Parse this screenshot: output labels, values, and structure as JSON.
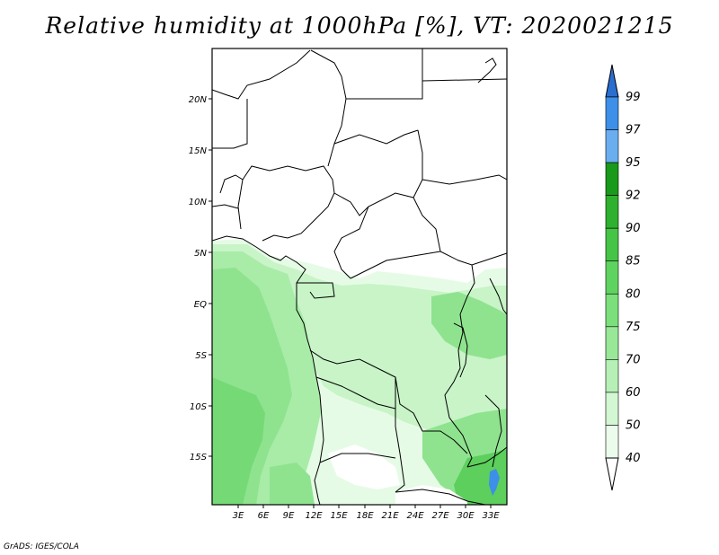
{
  "title": "Relative humidity at 1000hPa [%], VT: 2020021215",
  "credit": "GrADS: IGES/COLA",
  "lat_labels": [
    "20N",
    "15N",
    "10N",
    "5N",
    "EQ",
    "5S",
    "10S",
    "15S"
  ],
  "lon_labels": [
    "3E",
    "6E",
    "9E",
    "12E",
    "15E",
    "18E",
    "21E",
    "24E",
    "27E",
    "30E",
    "33E"
  ],
  "colorbar": {
    "labels": [
      "99",
      "97",
      "95",
      "92",
      "90",
      "85",
      "80",
      "75",
      "70",
      "60",
      "50",
      "40"
    ],
    "colors": [
      "#1f6fd6",
      "#3d8fe8",
      "#6aaef0",
      "#1a9a1a",
      "#2fb02f",
      "#46c446",
      "#5fd35f",
      "#7be07b",
      "#98e898",
      "#b6f0b6",
      "#d2f7d2",
      "#ecfcec"
    ],
    "top_arrow_color": "#2a6ed0"
  },
  "field_colors": {
    "land_dry": "#ffffff",
    "rh_50": "#e6fbe6",
    "rh_60": "#c8f4c8",
    "rh_70": "#a8eca8",
    "rh_75": "#8fe38f",
    "rh_80": "#75da75",
    "rh_85": "#5ccf5c",
    "rh_97": "#3d8fe8"
  }
}
